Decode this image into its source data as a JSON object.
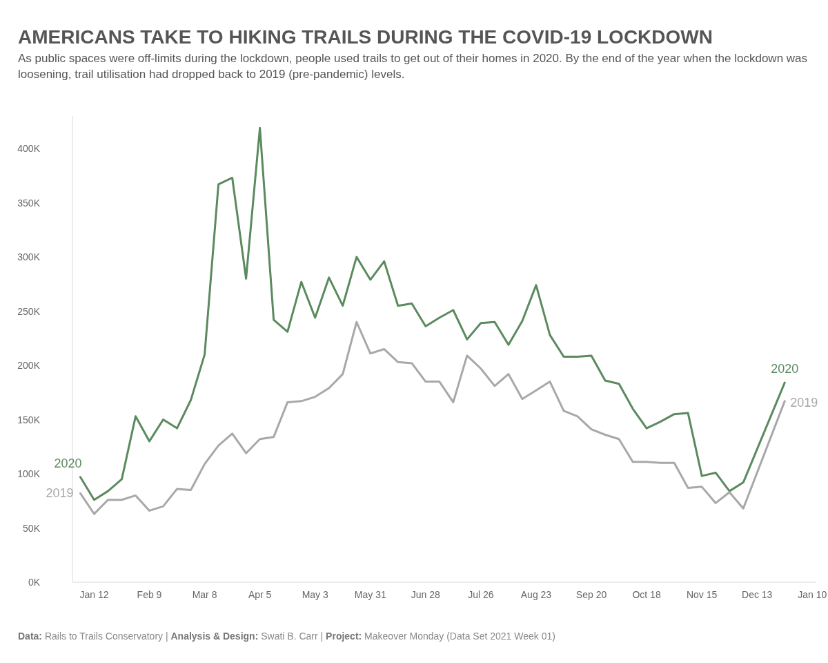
{
  "chart_data": {
    "type": "line",
    "title": "AMERICANS TAKE TO HIKING TRAILS DURING THE COVID-19 LOCKDOWN",
    "subtitle": "As public spaces were off-limits during the lockdown, people used trails to get out of their homes in 2020. By the end of the year when the lockdown was loosening, trail utilisation had dropped back to 2019 (pre-pandemic) levels.",
    "x": [
      "2020-01-05",
      "2020-01-12",
      "2020-01-19",
      "2020-01-26",
      "2020-02-02",
      "2020-02-09",
      "2020-02-16",
      "2020-02-23",
      "2020-03-01",
      "2020-03-08",
      "2020-03-15",
      "2020-03-22",
      "2020-03-29",
      "2020-04-05",
      "2020-04-12",
      "2020-04-19",
      "2020-04-26",
      "2020-05-03",
      "2020-05-10",
      "2020-05-17",
      "2020-05-24",
      "2020-05-31",
      "2020-06-07",
      "2020-06-14",
      "2020-06-21",
      "2020-06-28",
      "2020-07-05",
      "2020-07-12",
      "2020-07-19",
      "2020-07-26",
      "2020-08-02",
      "2020-08-09",
      "2020-08-16",
      "2020-08-23",
      "2020-08-30",
      "2020-09-06",
      "2020-09-13",
      "2020-09-20",
      "2020-09-27",
      "2020-10-04",
      "2020-10-11",
      "2020-10-18",
      "2020-10-25",
      "2020-11-01",
      "2020-11-08",
      "2020-11-15",
      "2020-11-22",
      "2020-11-29",
      "2020-12-06",
      "2020-12-27"
    ],
    "series": [
      {
        "name": "2020",
        "color": "#5b8a5e",
        "values": [
          97000,
          76000,
          84000,
          95000,
          153000,
          130000,
          150000,
          142000,
          168000,
          210000,
          367000,
          373000,
          280000,
          419000,
          242000,
          231000,
          277000,
          244000,
          281000,
          255000,
          300000,
          279000,
          296000,
          255000,
          257000,
          236000,
          244000,
          251000,
          224000,
          239000,
          240000,
          219000,
          241000,
          274000,
          228000,
          208000,
          208000,
          209000,
          186000,
          183000,
          160000,
          142000,
          148000,
          155000,
          156000,
          98000,
          101000,
          84000,
          92000,
          184000
        ]
      },
      {
        "name": "2019",
        "color": "#a8a8a8",
        "values": [
          82000,
          63000,
          76000,
          76000,
          80000,
          66000,
          70000,
          86000,
          85000,
          109000,
          126000,
          137000,
          119000,
          132000,
          134000,
          166000,
          167000,
          171000,
          179000,
          192000,
          240000,
          211000,
          215000,
          203000,
          202000,
          185000,
          185000,
          166000,
          209000,
          197000,
          181000,
          192000,
          169000,
          177000,
          185000,
          158000,
          153000,
          141000,
          136000,
          132000,
          111000,
          111000,
          110000,
          110000,
          87000,
          88000,
          73000,
          83000,
          68000,
          167000
        ]
      }
    ],
    "xlim": [
      "2020-01-01",
      "2021-01-12"
    ],
    "xticks": [
      {
        "value": "2020-01-12",
        "label": "Jan 12"
      },
      {
        "value": "2020-02-09",
        "label": "Feb 9"
      },
      {
        "value": "2020-03-08",
        "label": "Mar 8"
      },
      {
        "value": "2020-04-05",
        "label": "Apr 5"
      },
      {
        "value": "2020-05-03",
        "label": "May 3"
      },
      {
        "value": "2020-05-31",
        "label": "May 31"
      },
      {
        "value": "2020-06-28",
        "label": "Jun 28"
      },
      {
        "value": "2020-07-26",
        "label": "Jul 26"
      },
      {
        "value": "2020-08-23",
        "label": "Aug 23"
      },
      {
        "value": "2020-09-20",
        "label": "Sep 20"
      },
      {
        "value": "2020-10-18",
        "label": "Oct 18"
      },
      {
        "value": "2020-11-15",
        "label": "Nov 15"
      },
      {
        "value": "2020-12-13",
        "label": "Dec 13"
      },
      {
        "value": "2021-01-10",
        "label": "Jan 10"
      }
    ],
    "ylim": [
      0,
      430000
    ],
    "yticks": [
      {
        "value": 0,
        "label": "0K"
      },
      {
        "value": 50000,
        "label": "50K"
      },
      {
        "value": 100000,
        "label": "100K"
      },
      {
        "value": 150000,
        "label": "150K"
      },
      {
        "value": 200000,
        "label": "200K"
      },
      {
        "value": 250000,
        "label": "250K"
      },
      {
        "value": 300000,
        "label": "300K"
      },
      {
        "value": 350000,
        "label": "350K"
      },
      {
        "value": 400000,
        "label": "400K"
      }
    ],
    "grid": false,
    "legend": false,
    "marker": "none",
    "line_style": "solid",
    "annotations": [
      "Data: Rails to Trails Conservatory | Analysis & Design: Swati B. Carr | Project: Makeover Monday (Data Set 2021 Week 01)"
    ]
  }
}
